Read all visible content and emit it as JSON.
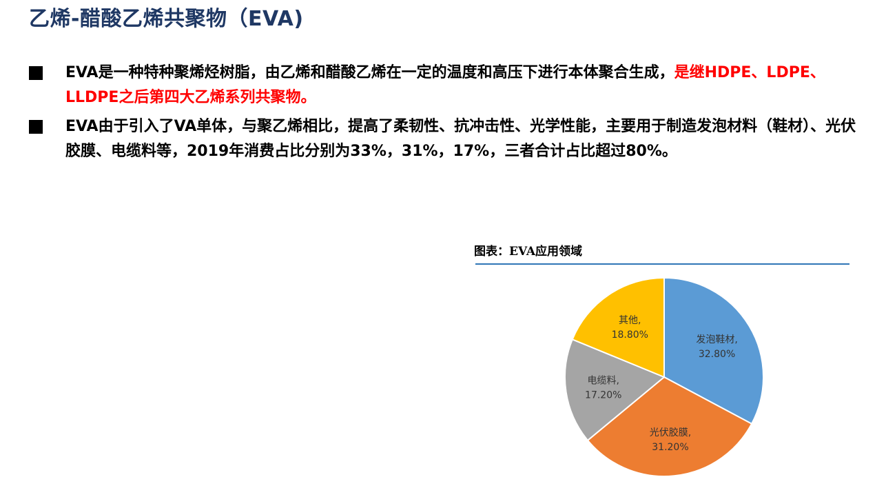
{
  "page": {
    "title": "乙烯-醋酸乙烯共聚物（EVA)",
    "bullets": [
      {
        "text_normal": "EVA是一种特种聚烯烃树脂，由乙烯和醋酸乙烯在一定的温度和高压下进行本体聚合生成，",
        "text_highlight": "是继HDPE、LDPE、LLDPE之后第四大乙烯系列共聚物。"
      },
      {
        "text_normal": "EVA由于引入了VA单体，与聚乙烯相比，提高了柔韧性、抗冲击性、光学性能，主要用于制造发泡材料（鞋材）、光伏胶膜、电缆料等，2019年消费占比分别为33%，31%，17%，三者合计占比超过80%。",
        "text_highlight": ""
      }
    ],
    "figure_title": "图表：EVA应用领域"
  },
  "colors": {
    "title": "#1f3864",
    "highlight": "#ff0000",
    "rule": "#2e75b6"
  },
  "chart_data": {
    "type": "pie",
    "slices": [
      {
        "label": "发泡鞋材,",
        "value": 32.8,
        "value_label": "32.80%",
        "color": "#5b9bd5"
      },
      {
        "label": "光伏胶膜,",
        "value": 31.2,
        "value_label": "31.20%",
        "color": "#ed7d31"
      },
      {
        "label": "电缆料,",
        "value": 17.2,
        "value_label": "17.20%",
        "color": "#a5a5a5"
      },
      {
        "label": "其他,",
        "value": 18.8,
        "value_label": "18.80%",
        "color": "#ffc000"
      }
    ],
    "start": "12 o'clock",
    "direction": "clockwise"
  }
}
